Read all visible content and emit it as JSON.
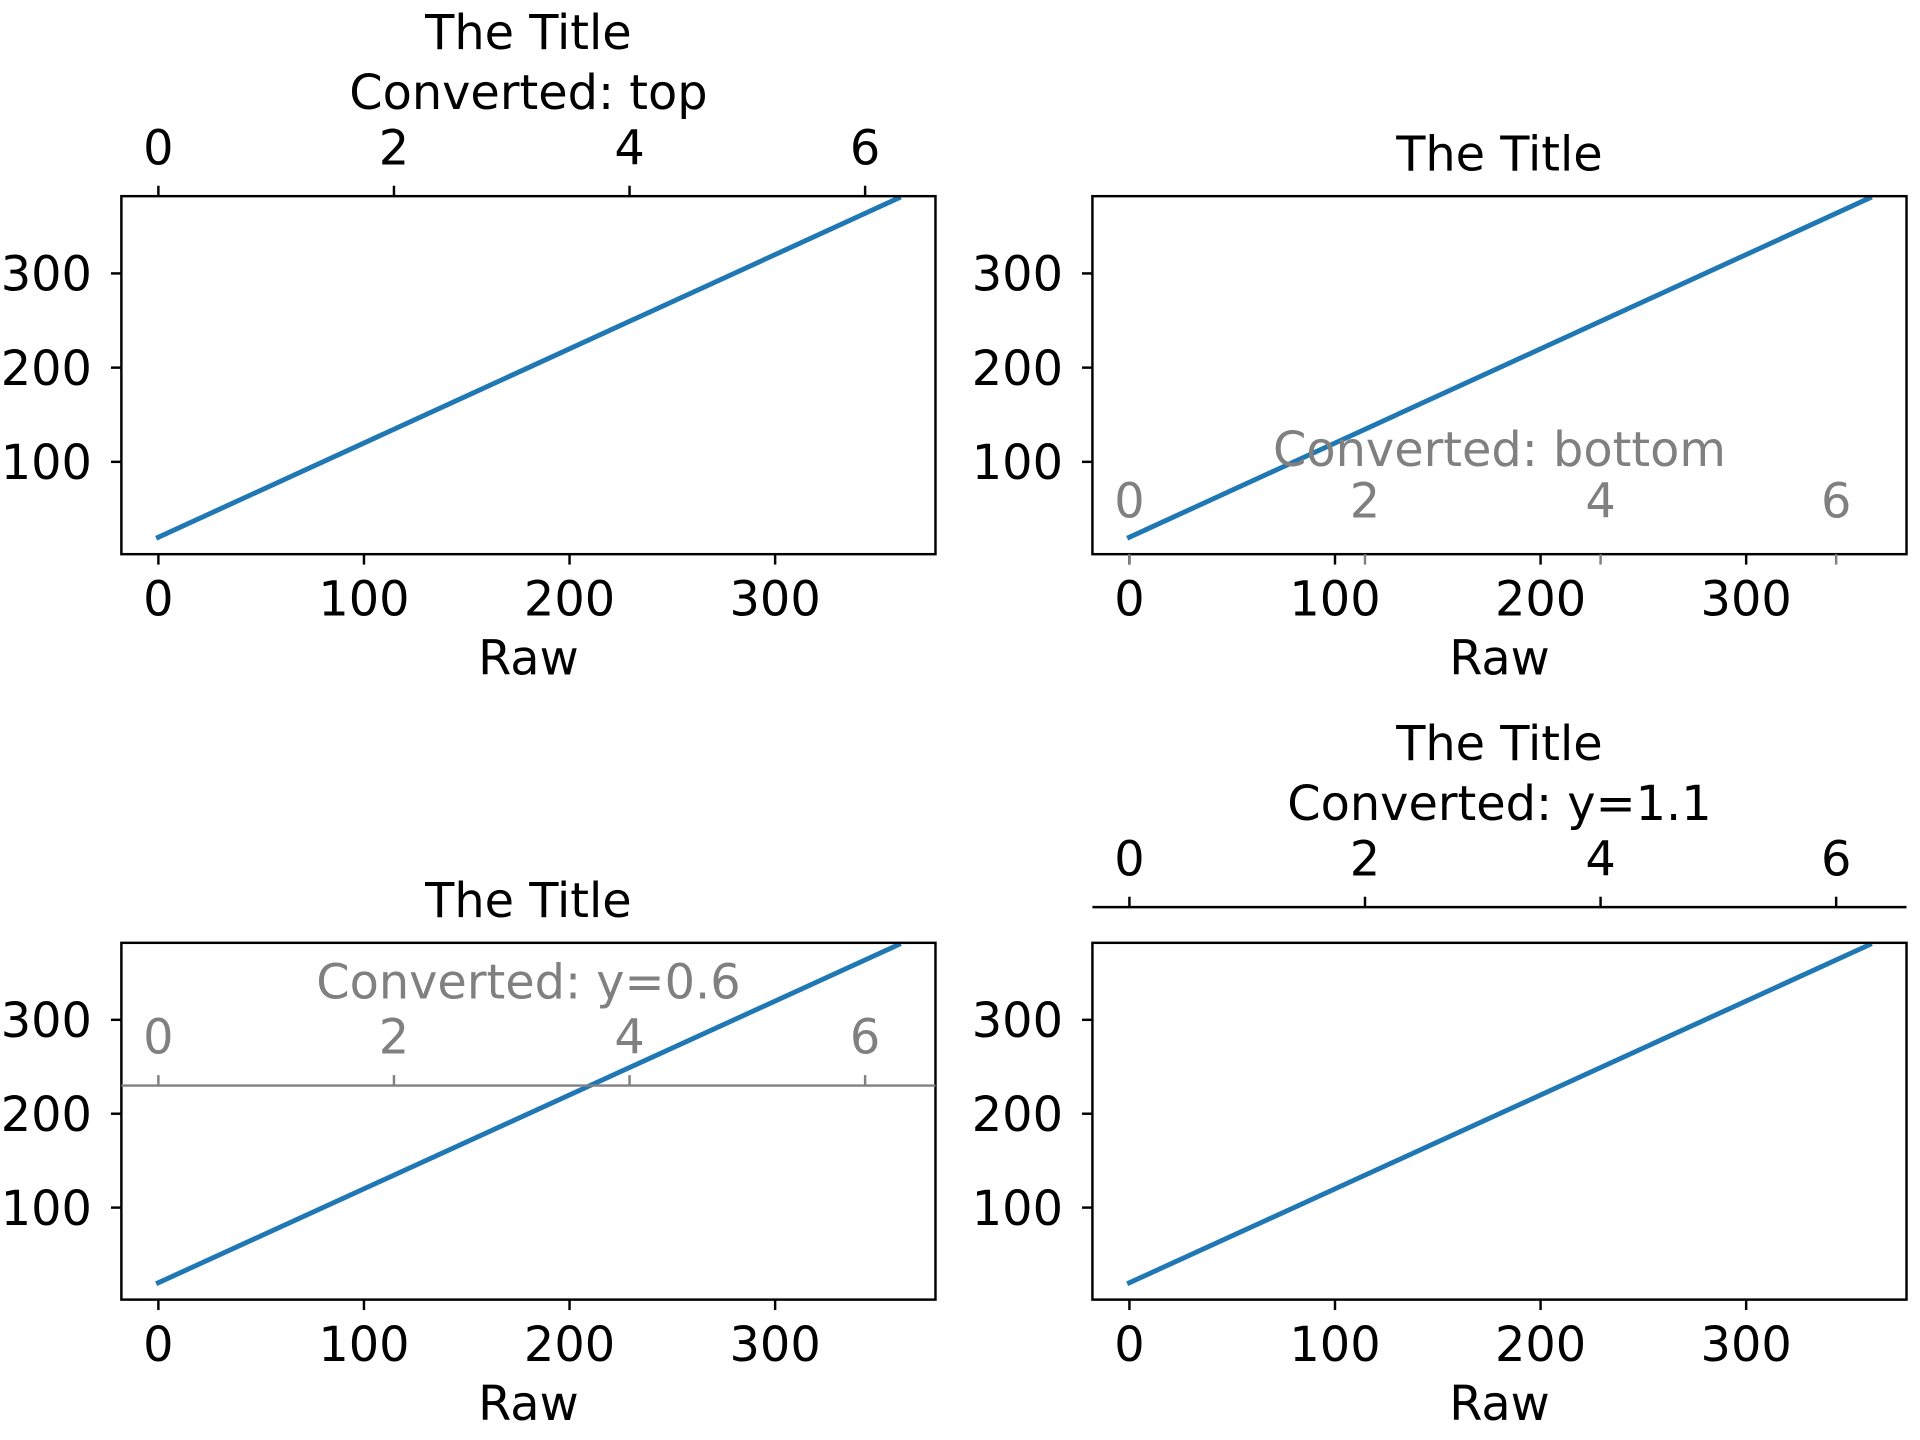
{
  "figure": {
    "background": "#ffffff",
    "line_color": "#1f77b4",
    "axis_color": "#000000",
    "secondary_color": "#808080"
  },
  "chart_data": [
    {
      "type": "line",
      "title": "The Title",
      "xlabel": "Raw",
      "xlim": [
        -18,
        378
      ],
      "ylim": [
        2,
        382
      ],
      "xticks": [
        0,
        100,
        200,
        300
      ],
      "yticks": [
        100,
        200,
        300
      ],
      "series": [
        {
          "x": [
            0,
            360
          ],
          "y": [
            20,
            380
          ]
        }
      ],
      "secondary_xaxis": {
        "label": "Converted: top",
        "location": "top",
        "factor_per_degree": 0.017453292519943295,
        "ticks": [
          0,
          2,
          4,
          6
        ],
        "color": "black",
        "spine_visible": false
      }
    },
    {
      "type": "line",
      "title": "The Title",
      "xlabel": "Raw",
      "xlim": [
        -18,
        378
      ],
      "ylim": [
        2,
        382
      ],
      "xticks": [
        0,
        100,
        200,
        300
      ],
      "yticks": [
        100,
        200,
        300
      ],
      "series": [
        {
          "x": [
            0,
            360
          ],
          "y": [
            20,
            380
          ]
        }
      ],
      "secondary_xaxis": {
        "label": "Converted: bottom",
        "location": "bottom",
        "factor_per_degree": 0.017453292519943295,
        "ticks": [
          0,
          2,
          4,
          6
        ],
        "color": "grey",
        "spine_visible": false
      }
    },
    {
      "type": "line",
      "title": "The Title",
      "xlabel": "Raw",
      "xlim": [
        -18,
        378
      ],
      "ylim": [
        2,
        382
      ],
      "xticks": [
        0,
        100,
        200,
        300
      ],
      "yticks": [
        100,
        200,
        300
      ],
      "series": [
        {
          "x": [
            0,
            360
          ],
          "y": [
            20,
            380
          ]
        }
      ],
      "secondary_xaxis": {
        "label": "Converted: y=0.6",
        "location": 0.6,
        "factor_per_degree": 0.017453292519943295,
        "ticks": [
          0,
          2,
          4,
          6
        ],
        "color": "grey",
        "spine_visible": true
      }
    },
    {
      "type": "line",
      "title": "The Title",
      "xlabel": "Raw",
      "xlim": [
        -18,
        378
      ],
      "ylim": [
        2,
        382
      ],
      "xticks": [
        0,
        100,
        200,
        300
      ],
      "yticks": [
        100,
        200,
        300
      ],
      "series": [
        {
          "x": [
            0,
            360
          ],
          "y": [
            20,
            380
          ]
        }
      ],
      "secondary_xaxis": {
        "label": "Converted: y=1.1",
        "location": 1.1,
        "factor_per_degree": 0.017453292519943295,
        "ticks": [
          0,
          2,
          4,
          6
        ],
        "color": "black",
        "spine_visible": true
      }
    }
  ]
}
